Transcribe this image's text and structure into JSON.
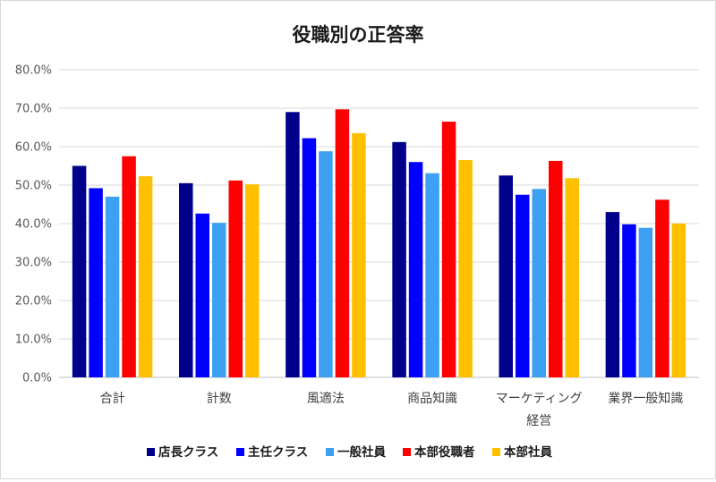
{
  "chart_data": {
    "type": "bar",
    "title": "役職別の正答率",
    "categories": [
      "合計",
      "計数",
      "風適法",
      "商品知識",
      [
        "マーケティング",
        "経営"
      ],
      "業界一般知識"
    ],
    "series": [
      {
        "name": "店長クラス",
        "color": "#00008b",
        "values": [
          55.0,
          50.5,
          69.0,
          61.2,
          52.5,
          43.0
        ]
      },
      {
        "name": "主任クラス",
        "color": "#0000ff",
        "values": [
          49.2,
          42.6,
          62.2,
          56.0,
          47.5,
          39.8
        ]
      },
      {
        "name": "一般社員",
        "color": "#3ea0f2",
        "values": [
          47.0,
          40.2,
          58.8,
          53.1,
          49.0,
          38.9
        ]
      },
      {
        "name": "本部役職者",
        "color": "#ff0000",
        "values": [
          57.5,
          51.2,
          69.7,
          66.5,
          56.3,
          46.2
        ]
      },
      {
        "name": "本部社員",
        "color": "#ffc000",
        "values": [
          52.3,
          50.2,
          63.5,
          56.5,
          51.8,
          40.0
        ]
      }
    ],
    "ylim": [
      0,
      80
    ],
    "yticks": [
      "0.0%",
      "10.0%",
      "20.0%",
      "30.0%",
      "40.0%",
      "50.0%",
      "60.0%",
      "70.0%",
      "80.0%"
    ],
    "grid": true,
    "legend_position": "bottom"
  }
}
